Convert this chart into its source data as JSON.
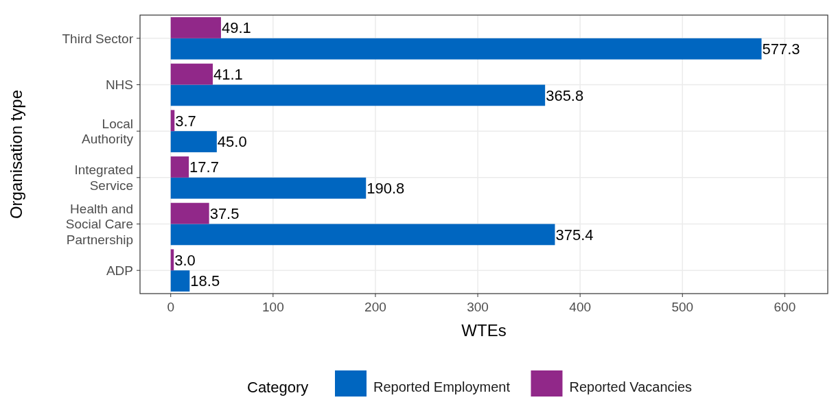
{
  "chart_data": {
    "type": "bar",
    "orientation": "horizontal",
    "xlabel": "WTEs",
    "ylabel": "Organisation type",
    "legend_title": "Category",
    "legend": "bottom",
    "grid": true,
    "categories": [
      "Third Sector",
      "NHS",
      "Local\nAuthority",
      "Integrated\nService",
      "Health and\nSocial Care\nPartnership",
      "ADP"
    ],
    "xlim": [
      -30,
      642
    ],
    "xticks": [
      0,
      100,
      200,
      300,
      400,
      500,
      600
    ],
    "series": [
      {
        "name": "Reported Employment",
        "color": "#0066c0",
        "values": [
          577.3,
          365.8,
          45.0,
          190.8,
          375.4,
          18.5
        ],
        "value_labels": [
          "577.3",
          "365.8",
          "45.0",
          "190.8",
          "375.4",
          "18.5"
        ]
      },
      {
        "name": "Reported Vacancies",
        "color": "#912889",
        "values": [
          49.1,
          41.1,
          3.7,
          17.7,
          37.5,
          3.0
        ],
        "value_labels": [
          "49.1",
          "41.1",
          "3.7",
          "17.7",
          "37.5",
          "3.0"
        ]
      }
    ]
  }
}
